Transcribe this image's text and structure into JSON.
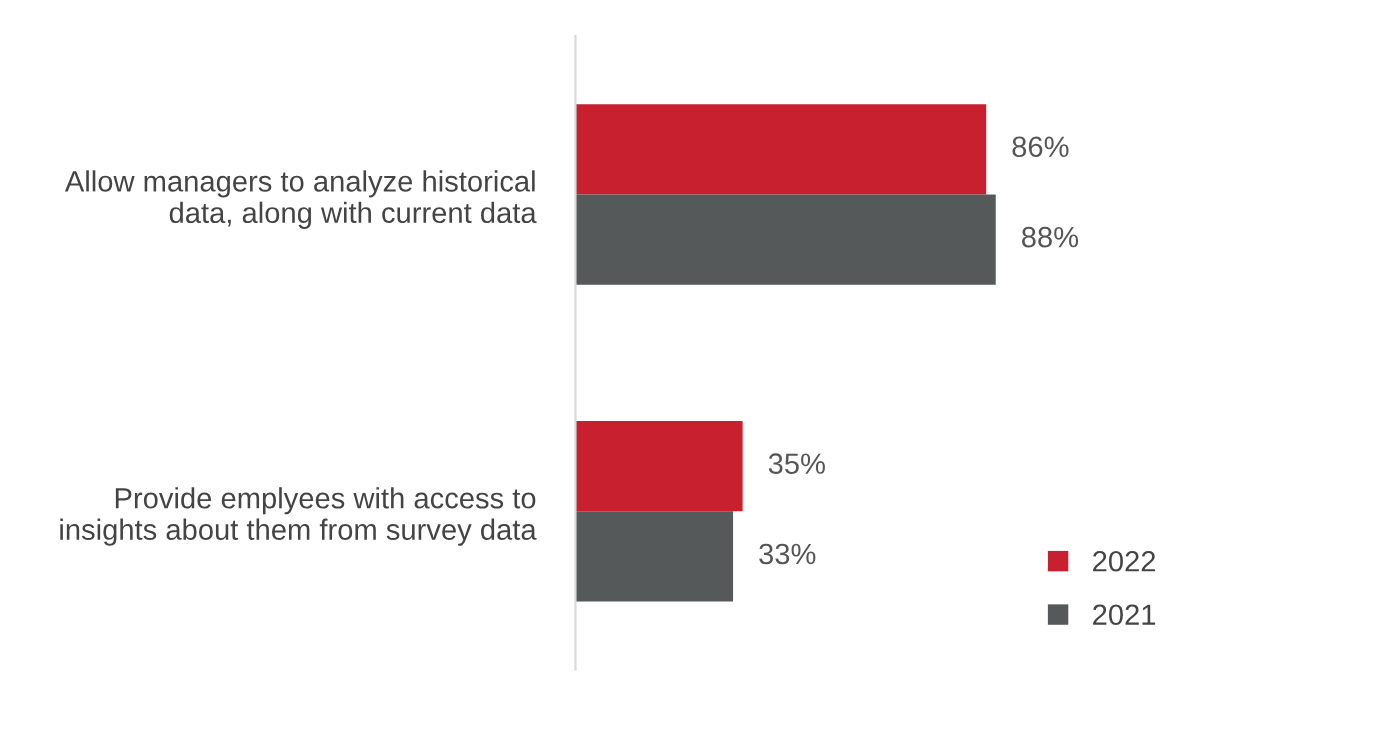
{
  "chart_data": {
    "type": "bar",
    "orientation": "horizontal",
    "categories": [
      "Allow managers to analyze historical\ndata, along with current data",
      "Provide emplyees with access to\ninsights about them from survey data"
    ],
    "series": [
      {
        "name": "2022",
        "color": "#c8202f",
        "values": [
          86,
          35
        ],
        "value_labels": [
          "86%",
          "35%"
        ]
      },
      {
        "name": "2021",
        "color": "#55595a",
        "values": [
          88,
          33
        ],
        "value_labels": [
          "88%",
          "33%"
        ]
      }
    ],
    "tick_labels": "y",
    "grid": false,
    "legend": "bottom right"
  }
}
